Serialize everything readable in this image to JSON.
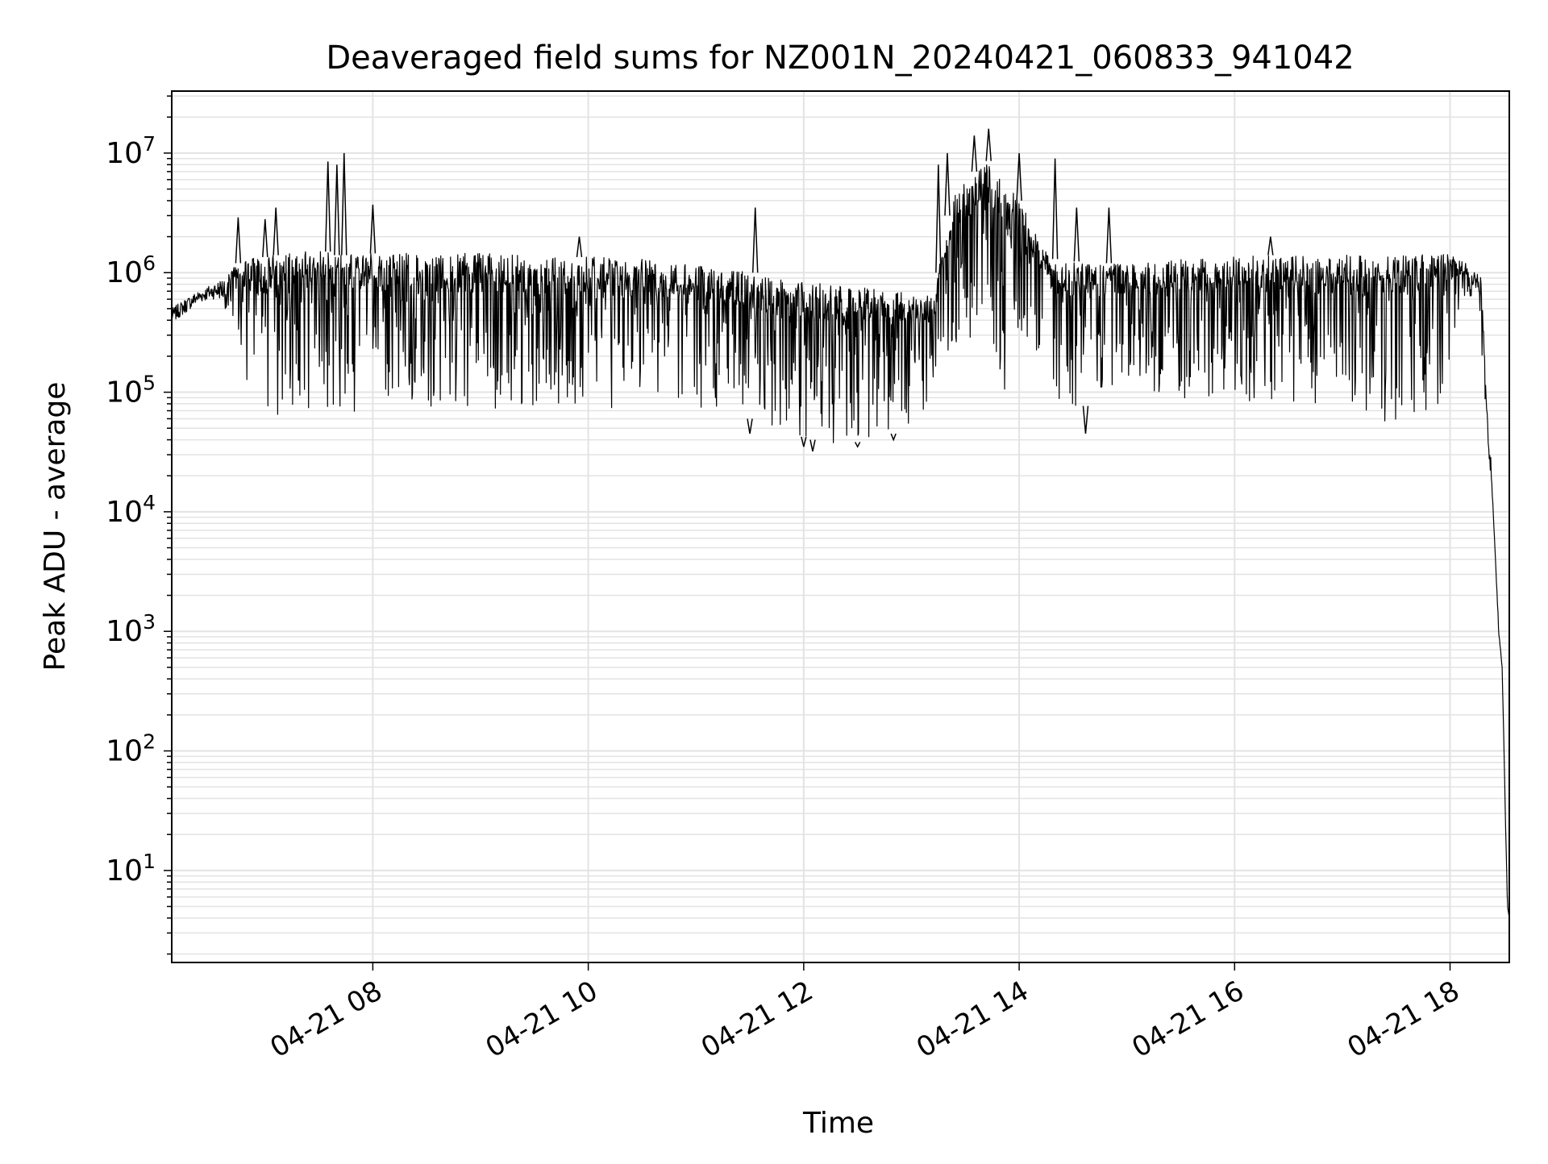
{
  "chart_data": {
    "type": "line",
    "title": "Deaveraged field sums for NZ001N_20240421_060833_941042",
    "xlabel": "Time",
    "ylabel": "Peak ADU - average",
    "xlim": [
      "2024-04-21 06:08",
      "2024-04-21 18:33"
    ],
    "yscale": "log",
    "ylim": [
      1.7,
      33000000
    ],
    "grid": true,
    "legend": "none",
    "x_ticks": [
      {
        "value": "2024-04-21 08:00",
        "label": "04-21 08"
      },
      {
        "value": "2024-04-21 10:00",
        "label": "04-21 10"
      },
      {
        "value": "2024-04-21 12:00",
        "label": "04-21 12"
      },
      {
        "value": "2024-04-21 14:00",
        "label": "04-21 14"
      },
      {
        "value": "2024-04-21 16:00",
        "label": "04-21 16"
      },
      {
        "value": "2024-04-21 18:00",
        "label": "04-21 18"
      }
    ],
    "y_ticks": [
      {
        "value": 10,
        "base": "10",
        "exp": "1"
      },
      {
        "value": 100,
        "base": "10",
        "exp": "2"
      },
      {
        "value": 1000,
        "base": "10",
        "exp": "3"
      },
      {
        "value": 10000,
        "base": "10",
        "exp": "4"
      },
      {
        "value": 100000,
        "base": "10",
        "exp": "5"
      },
      {
        "value": 1000000,
        "base": "10",
        "exp": "6"
      },
      {
        "value": 10000000,
        "base": "10",
        "exp": "7"
      }
    ],
    "series": [
      {
        "color": "#000000",
        "x": [
          "2024-04-21 06:08",
          "2024-04-21 06:15",
          "2024-04-21 06:22",
          "2024-04-21 06:30",
          "2024-04-21 06:36",
          "2024-04-21 06:40",
          "2024-04-21 06:45",
          "2024-04-21 06:50",
          "2024-04-21 06:55",
          "2024-04-21 06:58",
          "2024-04-21 07:00",
          "2024-04-21 07:03",
          "2024-04-21 07:06",
          "2024-04-21 07:10",
          "2024-04-21 07:15",
          "2024-04-21 07:20",
          "2024-04-21 07:30",
          "2024-04-21 07:35",
          "2024-04-21 07:40",
          "2024-04-21 07:43",
          "2024-04-21 07:45",
          "2024-04-21 07:48",
          "2024-04-21 07:50",
          "2024-04-21 07:55",
          "2024-04-21 08:00",
          "2024-04-21 08:20",
          "2024-04-21 08:40",
          "2024-04-21 09:00",
          "2024-04-21 09:20",
          "2024-04-21 09:30",
          "2024-04-21 09:50",
          "2024-04-21 10:10",
          "2024-04-21 10:30",
          "2024-04-21 10:50",
          "2024-04-21 11:10",
          "2024-04-21 11:30",
          "2024-04-21 11:34",
          "2024-04-21 11:40",
          "2024-04-21 11:55",
          "2024-04-21 12:05",
          "2024-04-21 12:20",
          "2024-04-21 12:35",
          "2024-04-21 12:50",
          "2024-04-21 13:05",
          "2024-04-21 13:12",
          "2024-04-21 13:15",
          "2024-04-21 13:20",
          "2024-04-21 13:25",
          "2024-04-21 13:30",
          "2024-04-21 13:35",
          "2024-04-21 13:40",
          "2024-04-21 13:45",
          "2024-04-21 13:50",
          "2024-04-21 13:55",
          "2024-04-21 14:00",
          "2024-04-21 14:05",
          "2024-04-21 14:10",
          "2024-04-21 14:15",
          "2024-04-21 14:20",
          "2024-04-21 14:30",
          "2024-04-21 14:40",
          "2024-04-21 14:50",
          "2024-04-21 15:00",
          "2024-04-21 15:10",
          "2024-04-21 15:20",
          "2024-04-21 15:30",
          "2024-04-21 15:45",
          "2024-04-21 16:00",
          "2024-04-21 16:20",
          "2024-04-21 16:40",
          "2024-04-21 17:00",
          "2024-04-21 17:20",
          "2024-04-21 17:40",
          "2024-04-21 17:55",
          "2024-04-21 18:00",
          "2024-04-21 18:05",
          "2024-04-21 18:10",
          "2024-04-21 18:13",
          "2024-04-21 18:15",
          "2024-04-21 18:17",
          "2024-04-21 18:19",
          "2024-04-21 18:21",
          "2024-04-21 18:23",
          "2024-04-21 18:25",
          "2024-04-21 18:27",
          "2024-04-21 18:29",
          "2024-04-21 18:30",
          "2024-04-21 18:31",
          "2024-04-21 18:32",
          "2024-04-21 18:33"
        ],
        "lower": [
          380000,
          450000,
          550000,
          600000,
          600000,
          400000,
          300000,
          120000,
          80000,
          70000,
          70000,
          65000,
          60000,
          65000,
          70000,
          70000,
          75000,
          70000,
          70000,
          68000,
          70000,
          65000,
          70000,
          70000,
          70000,
          68000,
          70000,
          72000,
          75000,
          70000,
          75000,
          72000,
          70000,
          70000,
          68000,
          60000,
          55000,
          50000,
          45000,
          40000,
          35000,
          40000,
          45000,
          60000,
          80000,
          150000,
          200000,
          250000,
          300000,
          260000,
          230000,
          200000,
          120000,
          80000,
          300000,
          250000,
          200000,
          150000,
          80000,
          70000,
          80000,
          100000,
          120000,
          90000,
          80000,
          85000,
          90000,
          85000,
          80000,
          75000,
          60000,
          55000,
          60000,
          80000,
          200000,
          400000,
          500000,
          600000,
          800000,
          400000,
          60000,
          30000,
          18000,
          5000,
          1000,
          500,
          100,
          20,
          5,
          4
        ],
        "upper": [
          500000,
          600000,
          700000,
          800000,
          900000,
          1100000,
          1200000,
          1300000,
          1400000,
          1300000,
          1350000,
          1400000,
          1400000,
          1450000,
          1450000,
          1500000,
          1500000,
          1500000,
          1400000,
          1400000,
          1400000,
          1450000,
          1450000,
          1500000,
          1450000,
          1450000,
          1450000,
          1450000,
          1400000,
          1350000,
          1350000,
          1350000,
          1300000,
          1200000,
          1100000,
          1000000,
          1000000,
          900000,
          850000,
          850000,
          800000,
          750000,
          700000,
          650000,
          650000,
          1000000,
          3000000,
          5000000,
          6000000,
          7000000,
          8000000,
          9000000,
          7000000,
          5000000,
          4000000,
          3000000,
          2000000,
          1500000,
          1300000,
          1250000,
          1200000,
          1200000,
          1200000,
          1200000,
          1250000,
          1300000,
          1300000,
          1350000,
          1400000,
          1400000,
          1400000,
          1400000,
          1400000,
          1450000,
          1400000,
          1300000,
          1200000,
          1000000,
          1300000,
          1100000,
          300000,
          60000,
          25000,
          5000,
          1200,
          500,
          120,
          25,
          5,
          4
        ]
      }
    ],
    "spikes": [
      {
        "x": "2024-04-21 06:45",
        "y": 2900000
      },
      {
        "x": "2024-04-21 07:00",
        "y": 2800000
      },
      {
        "x": "2024-04-21 07:06",
        "y": 3500000
      },
      {
        "x": "2024-04-21 07:35",
        "y": 8500000
      },
      {
        "x": "2024-04-21 07:40",
        "y": 8000000
      },
      {
        "x": "2024-04-21 07:44",
        "y": 10000000
      },
      {
        "x": "2024-04-21 08:00",
        "y": 3700000
      },
      {
        "x": "2024-04-21 09:55",
        "y": 2000000
      },
      {
        "x": "2024-04-21 11:33",
        "y": 3500000
      },
      {
        "x": "2024-04-21 13:15",
        "y": 8000000
      },
      {
        "x": "2024-04-21 13:20",
        "y": 10000000
      },
      {
        "x": "2024-04-21 13:35",
        "y": 14000000
      },
      {
        "x": "2024-04-21 13:43",
        "y": 16000000
      },
      {
        "x": "2024-04-21 14:00",
        "y": 10000000
      },
      {
        "x": "2024-04-21 14:20",
        "y": 9000000
      },
      {
        "x": "2024-04-21 14:32",
        "y": 3500000
      },
      {
        "x": "2024-04-21 14:50",
        "y": 3500000
      },
      {
        "x": "2024-04-21 16:20",
        "y": 2000000
      }
    ],
    "dips": [
      {
        "x": "2024-04-21 12:00",
        "y": 35000
      },
      {
        "x": "2024-04-21 12:05",
        "y": 32000
      },
      {
        "x": "2024-04-21 12:30",
        "y": 35000
      },
      {
        "x": "2024-04-21 12:50",
        "y": 40000
      },
      {
        "x": "2024-04-21 14:37",
        "y": 45000
      },
      {
        "x": "2024-04-21 11:30",
        "y": 45000
      }
    ]
  }
}
